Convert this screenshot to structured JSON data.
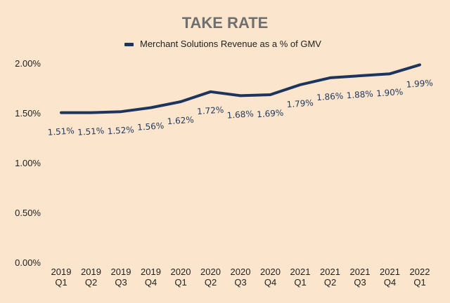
{
  "chart_data": {
    "type": "line",
    "title": "TAKE RATE",
    "xlabel": "",
    "ylabel": "",
    "categories": [
      [
        "2019",
        "Q1"
      ],
      [
        "2019",
        "Q2"
      ],
      [
        "2019",
        "Q3"
      ],
      [
        "2019",
        "Q4"
      ],
      [
        "2020",
        "Q1"
      ],
      [
        "2020",
        "Q2"
      ],
      [
        "2020",
        "Q3"
      ],
      [
        "2020",
        "Q4"
      ],
      [
        "2021",
        "Q1"
      ],
      [
        "2021",
        "Q2"
      ],
      [
        "2021",
        "Q3"
      ],
      [
        "2021",
        "Q4"
      ],
      [
        "2022",
        "Q1"
      ]
    ],
    "series": [
      {
        "name": "Merchant Solutions Revenue as a % of GMV",
        "values": [
          1.51,
          1.51,
          1.52,
          1.56,
          1.62,
          1.72,
          1.68,
          1.69,
          1.79,
          1.86,
          1.88,
          1.9,
          1.99
        ],
        "data_labels": [
          "1.51%",
          "1.51%",
          "1.52%",
          "1.56%",
          "1.62%",
          "1.72%",
          "1.68%",
          "1.69%",
          "1.79%",
          "1.86%",
          "1.88%",
          "1.90%",
          "1.99%"
        ],
        "color": "#1c355e"
      }
    ],
    "ylim": [
      0,
      2.0
    ],
    "yticks": [
      0,
      0.5,
      1.0,
      1.5,
      2.0
    ],
    "ytick_labels": [
      "0.00%",
      "0.50%",
      "1.00%",
      "1.50%",
      "2.00%"
    ],
    "grid": false,
    "legend_position": "top-center",
    "background_color": "#fbe5cc",
    "title_color": "#6f6f6f"
  }
}
